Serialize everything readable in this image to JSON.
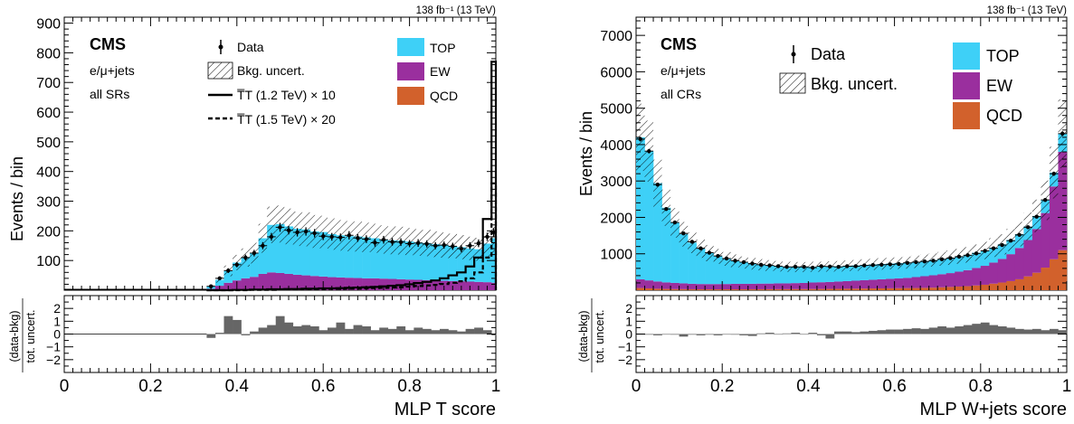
{
  "colors": {
    "top": "#3ed0f7",
    "ew": "#9a2f9e",
    "qcd": "#d2612c",
    "ratio": "#666666",
    "data": "#000000"
  },
  "chart_data": [
    {
      "type": "bar",
      "stacked": true,
      "lumi": "138 fb⁻¹ (13 TeV)",
      "experiment": "CMS",
      "channel": "e/μ+jets",
      "region": "all SRs",
      "xlabel": "MLP T score",
      "ylabel": "Events / bin",
      "ratio_ylabel": "(data-bkg) / tot. uncert.",
      "xlim": [
        0,
        1
      ],
      "ylim": [
        0,
        920
      ],
      "ratio_ylim": [
        -3,
        3
      ],
      "x_ticks": [
        "0",
        "0.2",
        "0.4",
        "0.6",
        "0.8",
        "1"
      ],
      "y_ticks": [
        "100",
        "200",
        "300",
        "400",
        "500",
        "600",
        "700",
        "800",
        "900"
      ],
      "ratio_ticks": [
        "2",
        "1",
        "0",
        "−1",
        "−2"
      ],
      "legend": {
        "data": "Data",
        "uncert": "Bkg. uncert.",
        "signal1": "T̅T (1.2 TeV) × 10",
        "signal2": "T̅T (1.5 TeV) × 20",
        "top": "TOP",
        "ew": "EW",
        "qcd": "QCD"
      },
      "bin_edges": [
        0.33,
        0.35,
        0.37,
        0.39,
        0.41,
        0.43,
        0.45,
        0.47,
        0.49,
        0.51,
        0.53,
        0.55,
        0.57,
        0.59,
        0.61,
        0.63,
        0.65,
        0.67,
        0.69,
        0.71,
        0.73,
        0.75,
        0.77,
        0.79,
        0.81,
        0.83,
        0.85,
        0.87,
        0.89,
        0.91,
        0.93,
        0.95,
        0.97,
        0.99,
        1.0
      ],
      "series": [
        {
          "name": "QCD",
          "values": [
            0,
            0,
            0,
            0,
            0,
            0,
            0,
            0,
            0,
            0,
            0,
            0,
            0,
            0,
            0,
            0,
            0,
            0,
            0,
            0,
            0,
            0,
            0,
            0,
            0,
            0,
            0,
            0,
            0,
            0,
            0,
            0,
            0,
            0
          ]
        },
        {
          "name": "EW",
          "values": [
            5,
            15,
            25,
            33,
            40,
            45,
            55,
            60,
            58,
            55,
            52,
            50,
            48,
            46,
            44,
            43,
            42,
            41,
            40,
            40,
            39,
            38,
            37,
            36,
            35,
            34,
            33,
            32,
            31,
            30,
            29,
            28,
            27,
            25
          ]
        },
        {
          "name": "TOP",
          "values": [
            8,
            20,
            40,
            60,
            70,
            80,
            120,
            160,
            165,
            160,
            155,
            155,
            150,
            150,
            145,
            142,
            140,
            140,
            138,
            135,
            132,
            130,
            130,
            128,
            126,
            125,
            122,
            120,
            118,
            115,
            112,
            110,
            130,
            150
          ]
        }
      ],
      "uncert_frac": 0.28,
      "data": [
        13,
        40,
        66,
        86,
        110,
        125,
        150,
        180,
        212,
        202,
        195,
        198,
        192,
        182,
        180,
        178,
        185,
        176,
        172,
        160,
        170,
        163,
        162,
        157,
        159,
        156,
        150,
        152,
        148,
        140,
        150,
        158,
        180,
        195
      ],
      "data_err": [
        4,
        6,
        8,
        9,
        10,
        11,
        12,
        13,
        15,
        14,
        14,
        14,
        14,
        13,
        13,
        13,
        14,
        13,
        13,
        13,
        13,
        13,
        13,
        12,
        13,
        12,
        12,
        12,
        12,
        12,
        12,
        13,
        14,
        14
      ],
      "signal1": [
        0,
        0,
        0,
        1,
        1,
        2,
        2,
        3,
        3,
        4,
        4,
        5,
        5,
        6,
        6,
        7,
        8,
        9,
        10,
        11,
        13,
        15,
        17,
        20,
        24,
        28,
        33,
        40,
        50,
        60,
        80,
        110,
        240,
        770
      ],
      "signal2": [
        0,
        0,
        0,
        0,
        0,
        1,
        1,
        1,
        2,
        2,
        2,
        3,
        3,
        3,
        4,
        4,
        5,
        5,
        6,
        7,
        8,
        9,
        10,
        12,
        14,
        16,
        18,
        21,
        25,
        30,
        40,
        60,
        110,
        360
      ],
      "ratio": [
        -0.3,
        0.1,
        1.4,
        1.1,
        -0.1,
        0.2,
        0.5,
        0.7,
        1.4,
        0.9,
        0.6,
        0.7,
        0.6,
        0.3,
        0.5,
        0.9,
        0.4,
        0.7,
        0.6,
        0.3,
        0.5,
        0.4,
        0.6,
        0.3,
        0.5,
        0.4,
        0.3,
        0.4,
        0.3,
        0.2,
        0.4,
        0.5,
        0.3,
        -0.1
      ]
    },
    {
      "type": "bar",
      "stacked": true,
      "lumi": "138 fb⁻¹ (13 TeV)",
      "experiment": "CMS",
      "channel": "e/μ+jets",
      "region": "all CRs",
      "xlabel": "MLP W+jets score",
      "ylabel": "Events / bin",
      "ratio_ylabel": "(data-bkg) / tot. uncert.",
      "xlim": [
        0,
        1
      ],
      "ylim": [
        0,
        7500
      ],
      "ratio_ylim": [
        -3,
        3
      ],
      "x_ticks": [
        "0",
        "0.2",
        "0.4",
        "0.6",
        "0.8",
        "1"
      ],
      "y_ticks": [
        "1000",
        "2000",
        "3000",
        "4000",
        "5000",
        "6000",
        "7000"
      ],
      "ratio_ticks": [
        "2",
        "1",
        "0",
        "−1",
        "−2"
      ],
      "legend": {
        "data": "Data",
        "uncert": "Bkg. uncert.",
        "top": "TOP",
        "ew": "EW",
        "qcd": "QCD"
      },
      "bin_edges": [
        0.0,
        0.02,
        0.04,
        0.06,
        0.08,
        0.1,
        0.12,
        0.14,
        0.16,
        0.18,
        0.2,
        0.22,
        0.24,
        0.26,
        0.28,
        0.3,
        0.32,
        0.34,
        0.36,
        0.38,
        0.4,
        0.42,
        0.44,
        0.46,
        0.48,
        0.5,
        0.52,
        0.54,
        0.56,
        0.58,
        0.6,
        0.62,
        0.64,
        0.66,
        0.68,
        0.7,
        0.72,
        0.74,
        0.76,
        0.78,
        0.8,
        0.82,
        0.84,
        0.86,
        0.88,
        0.9,
        0.92,
        0.94,
        0.96,
        0.98,
        1.0
      ],
      "series": [
        {
          "name": "QCD",
          "values": [
            60,
            50,
            40,
            35,
            30,
            28,
            26,
            25,
            24,
            24,
            25,
            25,
            25,
            26,
            26,
            27,
            28,
            28,
            30,
            30,
            32,
            34,
            36,
            38,
            40,
            42,
            45,
            48,
            50,
            52,
            55,
            58,
            60,
            65,
            70,
            80,
            90,
            100,
            110,
            130,
            150,
            180,
            210,
            250,
            300,
            380,
            480,
            620,
            850,
            1100
          ]
        },
        {
          "name": "EW",
          "values": [
            240,
            220,
            200,
            180,
            170,
            160,
            150,
            145,
            145,
            145,
            145,
            150,
            150,
            150,
            155,
            155,
            160,
            160,
            165,
            170,
            180,
            185,
            190,
            200,
            210,
            220,
            230,
            240,
            250,
            260,
            270,
            280,
            300,
            320,
            340,
            360,
            380,
            410,
            440,
            480,
            520,
            580,
            650,
            740,
            860,
            1000,
            1200,
            1500,
            2000,
            2700
          ]
        },
        {
          "name": "TOP",
          "values": [
            3900,
            3550,
            2700,
            2050,
            1650,
            1350,
            1130,
            970,
            850,
            760,
            690,
            630,
            585,
            550,
            520,
            495,
            470,
            455,
            440,
            435,
            430,
            425,
            425,
            420,
            420,
            420,
            420,
            420,
            420,
            420,
            420,
            420,
            420,
            420,
            420,
            420,
            420,
            420,
            420,
            420,
            420,
            410,
            400,
            390,
            380,
            370,
            360,
            350,
            380,
            500
          ]
        }
      ],
      "uncert_frac": 0.22,
      "data": [
        4150,
        3820,
        2900,
        2230,
        1860,
        1560,
        1330,
        1150,
        1030,
        940,
        870,
        810,
        770,
        730,
        700,
        680,
        660,
        640,
        640,
        640,
        620,
        660,
        650,
        640,
        660,
        660,
        680,
        690,
        700,
        710,
        720,
        750,
        770,
        790,
        810,
        850,
        880,
        920,
        960,
        1010,
        1080,
        1150,
        1240,
        1360,
        1520,
        1730,
        2020,
        2480,
        3200,
        4300
      ],
      "data_err": [
        64,
        62,
        54,
        47,
        43,
        39,
        36,
        34,
        32,
        31,
        29,
        28,
        28,
        27,
        26,
        26,
        26,
        25,
        25,
        25,
        25,
        26,
        25,
        25,
        26,
        26,
        26,
        26,
        26,
        27,
        27,
        27,
        28,
        28,
        28,
        29,
        30,
        30,
        31,
        32,
        33,
        34,
        35,
        37,
        39,
        42,
        45,
        50,
        57,
        66
      ],
      "ratio": [
        0.0,
        -0.05,
        -0.1,
        0.0,
        -0.05,
        -0.2,
        -0.05,
        -0.1,
        -0.05,
        -0.1,
        0.0,
        -0.05,
        -0.1,
        -0.15,
        0.05,
        0.1,
        0.0,
        0.05,
        0.1,
        0.0,
        0.1,
        -0.1,
        -0.35,
        0.2,
        0.2,
        0.15,
        0.2,
        0.25,
        0.3,
        0.35,
        0.35,
        0.4,
        0.45,
        0.4,
        0.5,
        0.6,
        0.5,
        0.6,
        0.7,
        0.8,
        0.9,
        0.7,
        0.6,
        0.5,
        0.4,
        0.35,
        0.4,
        0.3,
        0.4,
        0.3
      ]
    }
  ]
}
